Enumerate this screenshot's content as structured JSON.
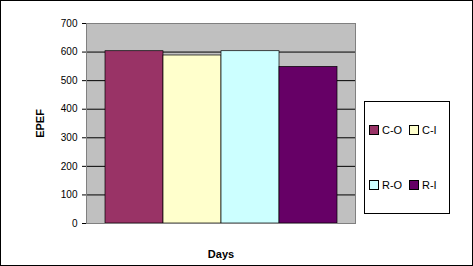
{
  "chart_data": {
    "type": "bar",
    "x_label": "Days",
    "y_label": "EPEF",
    "categories": [
      null
    ],
    "series": [
      {
        "name": "C-O",
        "color": "#993366",
        "values": [
          603
        ]
      },
      {
        "name": "C-I",
        "color": "#ffffcc",
        "values": [
          588
        ]
      },
      {
        "name": "R-O",
        "color": "#ccffff",
        "values": [
          603
        ]
      },
      {
        "name": "R-I",
        "color": "#660066",
        "values": [
          548
        ]
      }
    ],
    "ylim": [
      0,
      700
    ],
    "yticks": [
      0,
      100,
      200,
      300,
      400,
      500,
      600,
      700
    ],
    "grid": true,
    "legend": "right"
  }
}
